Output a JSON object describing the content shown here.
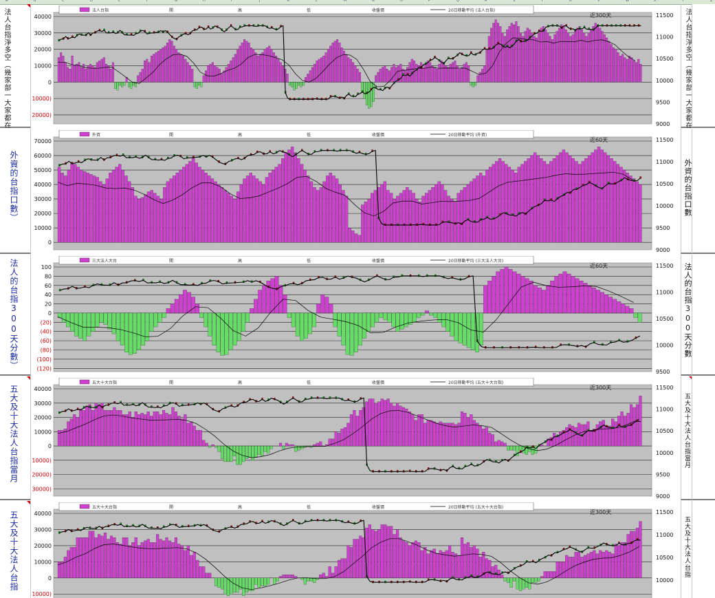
{
  "columns": [
    "A",
    "B",
    "C",
    "D",
    "E",
    "F",
    "G",
    "H",
    "I",
    "J",
    "K",
    "L",
    "M",
    "N",
    "O",
    "P",
    "Q",
    "R",
    "S",
    "T",
    "U",
    "V",
    "W",
    "X",
    "Y",
    "Z"
  ],
  "colors": {
    "pink": "#d040d0",
    "green": "#66dd66",
    "plot_bg": "#c0c0c0",
    "neg": "#cc0000"
  },
  "panels": [
    {
      "id": "p1",
      "left_label": "法人台指淨多空（幾家部一大家都在看，看滬線圖不看）",
      "left_label_small": true,
      "right_label": "法人台指淨多空（幾家部一大家都在看，漲跌，看滬線圖不看）",
      "legend": [
        "法人台指",
        "開",
        "高",
        "低",
        "收盤價",
        "20日移動平均 (法人台指)"
      ],
      "title": "近300天",
      "y_left": [
        "40000",
        "30000",
        "20000",
        "10000",
        "0",
        "(10000)",
        "(20000)"
      ],
      "y_right": [
        "11500",
        "11000",
        "10500",
        "10000",
        "9500",
        "9000"
      ],
      "chart_data": {
        "type": "bar",
        "series": [
          {
            "values": [
              15,
              18,
              16,
              12,
              9,
              8,
              16,
              10,
              11,
              12,
              9,
              11,
              8,
              10,
              11,
              10,
              9,
              12,
              13,
              14,
              15,
              11,
              10,
              8,
              12,
              -4,
              -5,
              -2,
              -3,
              -2,
              3,
              -3,
              -4,
              -2,
              -3,
              4,
              6,
              8,
              13,
              14,
              12,
              16,
              17,
              18,
              19,
              20,
              21,
              22,
              24,
              26,
              25,
              22,
              20,
              18,
              17,
              16,
              14,
              12,
              10,
              8,
              -3,
              -4,
              -2,
              -3,
              4,
              7,
              10,
              11,
              12,
              10,
              9,
              8,
              5,
              7,
              9,
              11,
              13,
              15,
              17,
              20,
              22,
              24,
              26,
              25,
              24,
              21,
              20,
              18,
              16,
              17,
              18,
              20,
              21,
              22,
              20,
              18,
              16,
              14,
              12,
              10,
              8,
              5,
              -2,
              -3,
              -5,
              -4,
              -2,
              -3,
              -2,
              3,
              5,
              7,
              9,
              11,
              13,
              14,
              15,
              16,
              18,
              20,
              22,
              24,
              25,
              26,
              24,
              21,
              19,
              17,
              15,
              14,
              12,
              10,
              8,
              6,
              -6,
              -10,
              -14,
              -16,
              -15,
              -12,
              4,
              6,
              8,
              9,
              10,
              8,
              7,
              9,
              11,
              9,
              10,
              11,
              8,
              7,
              9,
              12,
              14,
              13,
              11,
              10,
              12,
              9,
              11,
              13,
              12,
              10,
              9,
              8,
              11,
              13,
              12,
              10,
              9,
              11,
              12,
              13,
              10,
              8,
              9,
              11,
              12,
              10,
              -2,
              -3,
              -2,
              4,
              6,
              8,
              10,
              20,
              28,
              33,
              36,
              38,
              36,
              34,
              30,
              28,
              32,
              34,
              36,
              35,
              37,
              34,
              30,
              28,
              31,
              33,
              32,
              30,
              28,
              27,
              30,
              33,
              34,
              32,
              30,
              28,
              26,
              29,
              31,
              33,
              35,
              34,
              32,
              30,
              28,
              29,
              31,
              33,
              34,
              32,
              30,
              28,
              30,
              32,
              34,
              36,
              35,
              33,
              31,
              29,
              27,
              25,
              23,
              21,
              20,
              18,
              16,
              17,
              15,
              14,
              16,
              15,
              13,
              12,
              14,
              11
            ]
          }
        ],
        "price_line": [
          10850,
          10950,
          11000,
          10900,
          10800,
          10750,
          10850,
          10950,
          10900,
          10700,
          10600,
          10650,
          10800,
          10900,
          11000,
          11050,
          11100,
          11000,
          10950,
          10900,
          10850,
          10900,
          11000,
          11050,
          10950,
          10850,
          10900,
          10950,
          11000,
          10950,
          10900,
          10950,
          11000,
          10980,
          10900,
          10750,
          10650,
          10500,
          10300,
          10100,
          9900,
          10000,
          10100,
          10050,
          9950,
          9900,
          10000,
          10050,
          10100,
          10150,
          10050,
          10000,
          9900,
          9850,
          9800,
          9750,
          9900,
          10050,
          10200,
          10350,
          10500,
          10600,
          10700,
          10800,
          10900,
          11000,
          11050,
          11000,
          10950,
          10900,
          10950,
          11000,
          11050,
          11100,
          11050,
          11000,
          10950,
          10900,
          10950,
          11000
        ]
      }
    },
    {
      "id": "p2",
      "left_label": "外資的台指口數）",
      "right_label": "外資的台指口數",
      "legend": [
        "外資",
        "開",
        "高",
        "低",
        "收盤價",
        "20日移動平均 (外資)"
      ],
      "title": "近60天",
      "y_left": [
        "70000",
        "60000",
        "50000",
        "40000",
        "30000",
        "20000",
        "10000",
        "0"
      ],
      "y_right": [
        "11500",
        "11000",
        "10500",
        "10000",
        "9500",
        "9000"
      ],
      "chart_data": {
        "type": "bar",
        "series": [
          {
            "values": [
              52,
              48,
              46,
              50,
              55,
              54,
              52,
              50,
              49,
              48,
              47,
              46,
              45,
              42,
              40,
              44,
              48,
              50,
              52,
              54,
              50,
              46,
              42,
              38,
              32,
              30,
              31,
              33,
              35,
              36,
              34,
              32,
              30,
              38,
              42,
              44,
              46,
              48,
              50,
              52,
              54,
              56,
              58,
              55,
              52,
              50,
              48,
              46,
              44,
              42,
              40,
              38,
              36,
              34,
              32,
              30,
              35,
              40,
              44,
              46,
              48,
              46,
              44,
              42,
              40,
              45,
              48,
              50,
              52,
              54,
              58,
              62,
              64,
              66,
              62,
              58,
              54,
              50,
              46,
              42,
              38,
              36,
              38,
              42,
              46,
              48,
              46,
              44,
              40,
              36,
              32,
              10,
              8,
              6,
              5,
              26,
              28,
              30,
              34,
              36,
              38,
              40,
              42,
              36,
              34,
              30,
              32,
              34,
              36,
              38,
              36,
              34,
              30,
              28,
              32,
              34,
              36,
              38,
              40,
              42,
              40,
              36,
              32,
              30,
              28,
              34,
              36,
              38,
              40,
              42,
              44,
              46,
              48,
              46,
              50,
              52,
              54,
              56,
              58,
              56,
              54,
              52,
              50,
              48,
              52,
              54,
              56,
              58,
              60,
              62,
              60,
              58,
              56,
              54,
              56,
              58,
              60,
              62,
              64,
              62,
              60,
              58,
              56,
              54,
              56,
              58,
              60,
              62,
              64,
              66,
              64,
              62,
              60,
              58,
              56,
              54,
              52,
              50,
              48,
              46,
              44,
              42,
              40
            ]
          }
        ]
      }
    },
    {
      "id": "p3",
      "left_label": "法人的台指300天分數）",
      "right_label": "法人的台指300天分數",
      "legend": [
        "三大法人大台",
        "開",
        "高",
        "低",
        "收盤價",
        "20日移動平均 (三大法人大台)"
      ],
      "title": "近60天",
      "y_left": [
        "100",
        "80",
        "60",
        "40",
        "20",
        "0",
        "(20)",
        "(40)",
        "(60)",
        "(80)",
        "(100)",
        "(120)"
      ],
      "y_right": [
        "11500",
        "11000",
        "10500",
        "10000",
        "9500"
      ],
      "chart_data": {
        "type": "bar",
        "series": [
          {
            "values": [
              -10,
              -20,
              -30,
              -40,
              -50,
              -55,
              -60,
              -50,
              -40,
              -30,
              -20,
              -25,
              -35,
              -45,
              -60,
              -70,
              -85,
              -90,
              -88,
              -80,
              -70,
              -60,
              -40,
              -30,
              -20,
              -10,
              10,
              20,
              30,
              40,
              50,
              45,
              35,
              20,
              -10,
              -30,
              -50,
              -70,
              -85,
              -92,
              -90,
              -80,
              -70,
              -60,
              -40,
              -20,
              10,
              30,
              50,
              60,
              70,
              75,
              80,
              60,
              40,
              -10,
              -30,
              -50,
              -60,
              -55,
              -45,
              -30,
              20,
              40,
              35,
              20,
              -30,
              -50,
              -70,
              -90,
              -92,
              -85,
              -70,
              -55,
              -40,
              -30,
              -20,
              -10,
              -15,
              -20,
              -30,
              -40,
              -35,
              -30,
              -25,
              -20,
              -10,
              -5,
              5,
              -5,
              -10,
              -20,
              -30,
              -40,
              -50,
              -60,
              -65,
              -70,
              -75,
              -80,
              -85,
              -70,
              60,
              70,
              80,
              90,
              95,
              100,
              95,
              90,
              85,
              80,
              75,
              70,
              60,
              55,
              50,
              60,
              70,
              80,
              85,
              90,
              85,
              80,
              75,
              70,
              65,
              60,
              55,
              50,
              45,
              40,
              35,
              30,
              25,
              20,
              15,
              10,
              -10,
              -20
            ]
          }
        ]
      }
    },
    {
      "id": "p4",
      "left_label": "五大及十大法人台指當月",
      "right_label": "五大及十大法人台指當月",
      "legend": [
        "五大十大台指",
        "開",
        "高",
        "低",
        "收盤價",
        "20日移動平均 (五大十大台指)"
      ],
      "title": "近300天",
      "y_left": [
        "40000",
        "30000",
        "20000",
        "10000",
        "0",
        "(10000)",
        "(20000)",
        "(30000)"
      ],
      "y_right": [
        "11500",
        "11000",
        "10500",
        "10000",
        "9500",
        "9000"
      ],
      "chart_data": {
        "type": "bar"
      }
    },
    {
      "id": "p5",
      "left_label": "五大及十大法人台指",
      "right_label": "五大及十大法人台指",
      "legend": [
        "五大十大台指",
        "開",
        "高",
        "低",
        "收盤價",
        "20日移動平均 (五大十大台指)"
      ],
      "title": "近300天",
      "y_left": [
        "40000",
        "30000",
        "20000",
        "10000",
        "0",
        "(10000)"
      ],
      "y_right": [
        "11500",
        "11000",
        "10500",
        "10000",
        "9500"
      ],
      "chart_data": {
        "type": "bar"
      }
    }
  ]
}
